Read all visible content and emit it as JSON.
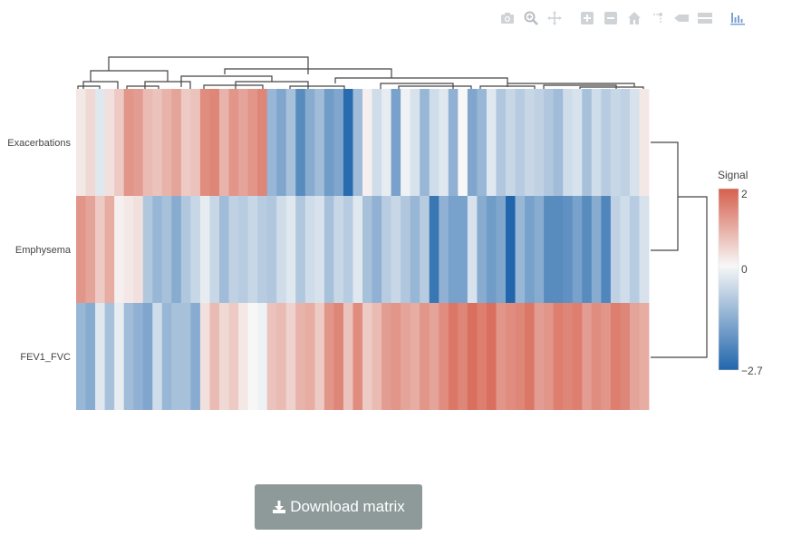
{
  "toolbar": {
    "icons": [
      "camera-icon",
      "zoom-icon",
      "pan-icon",
      "zoom-in-icon",
      "zoom-out-icon",
      "home-icon",
      "spike-lines-icon",
      "hover-closest-icon",
      "hover-compare-icon",
      "plotly-logo-icon"
    ]
  },
  "chart_data": {
    "type": "heatmap",
    "rows": [
      "Exacerbations",
      "Emphysema",
      "FEV1_FVC"
    ],
    "colorbar": {
      "title": "Signal",
      "ticks": [
        "2",
        "0",
        "−2.7"
      ],
      "min": -2.7,
      "max": 2,
      "mid": 0
    },
    "colorscale": {
      "low": "#2166ac",
      "mid": "#f7f7f7",
      "high": "#d6604d"
    },
    "dendrogram": {
      "row_order": [
        "Exacerbations",
        "Emphysema",
        "FEV1_FVC"
      ],
      "column_clusters": 2
    },
    "values": [
      [
        0.2,
        0.4,
        -0.3,
        0.3,
        0.6,
        1.3,
        1.2,
        0.8,
        0.7,
        0.9,
        1.1,
        0.6,
        0.7,
        1.4,
        1.5,
        0.9,
        1.3,
        1.1,
        1.3,
        1.5,
        -1.2,
        -1.5,
        -1.0,
        -2.0,
        -1.4,
        -1.1,
        -1.7,
        -1.5,
        -2.6,
        -1.1,
        0.1,
        -0.5,
        -0.2,
        -1.6,
        -0.1,
        -0.4,
        -1.2,
        -0.5,
        -0.3,
        -1.3,
        0.0,
        -1.5,
        -1.2,
        -0.3,
        -0.9,
        -0.6,
        -0.8,
        -0.6,
        -0.7,
        -0.9,
        -1.1,
        -0.5,
        -0.4,
        -1.0,
        -0.5,
        -0.8,
        -0.6,
        -0.7,
        -0.4,
        0.2
      ],
      [
        1.3,
        1.1,
        0.6,
        1.0,
        0.1,
        0.2,
        0.3,
        -0.9,
        -1.2,
        -1.0,
        -1.4,
        -0.9,
        -0.6,
        -0.2,
        -0.6,
        -1.1,
        -0.7,
        -0.8,
        -0.6,
        -0.8,
        -0.9,
        -0.5,
        -0.3,
        -0.9,
        -0.5,
        -0.4,
        -1.0,
        -0.6,
        -0.8,
        -0.3,
        -1.0,
        -1.3,
        -0.8,
        -0.6,
        -0.9,
        -1.2,
        -0.8,
        -2.4,
        -1.3,
        -1.6,
        -1.6,
        -0.4,
        -1.4,
        -1.7,
        -1.5,
        -2.7,
        -1.2,
        -1.6,
        -1.4,
        -2.0,
        -2.0,
        -1.9,
        -1.6,
        -2.0,
        -1.4,
        -2.1,
        -0.7,
        -0.5,
        -0.8,
        -0.4
      ],
      [
        -1.2,
        -1.4,
        -0.3,
        -1.0,
        -0.2,
        -1.1,
        -1.3,
        -1.5,
        -0.5,
        -1.2,
        -1.0,
        -1.0,
        -1.4,
        0.3,
        0.8,
        0.4,
        0.6,
        0.2,
        0.0,
        -0.1,
        0.7,
        0.8,
        0.5,
        0.9,
        1.0,
        0.6,
        1.3,
        1.5,
        0.7,
        1.4,
        0.6,
        0.8,
        1.2,
        1.3,
        1.1,
        1.0,
        1.3,
        1.1,
        1.4,
        1.7,
        1.5,
        1.8,
        1.6,
        1.8,
        1.3,
        1.4,
        1.5,
        1.7,
        1.2,
        1.3,
        1.6,
        1.5,
        1.6,
        1.2,
        1.4,
        1.3,
        1.6,
        1.5,
        1.1,
        1.0
      ]
    ]
  },
  "download": {
    "label": "Download matrix",
    "icon": "download-icon"
  }
}
